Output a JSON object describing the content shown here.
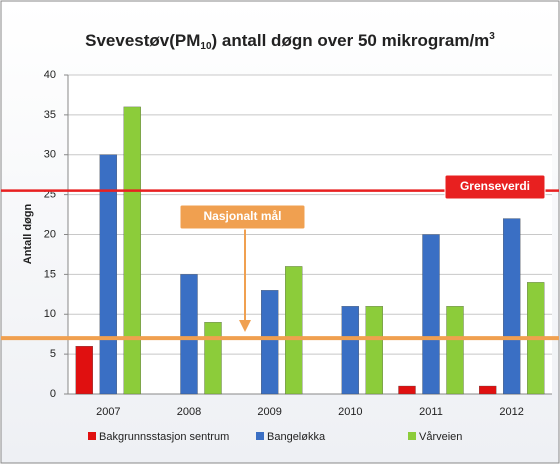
{
  "chart_data": {
    "type": "bar",
    "title": [
      "Svevestøv(PM",
      "10",
      ") antall døgn over 50 mikrogram/m",
      "3"
    ],
    "ylabel": "Antall døgn",
    "categories": [
      "2007",
      "2008",
      "2009",
      "2010",
      "2011",
      "2012"
    ],
    "series": [
      {
        "name": "Bakgrunnsstasjon sentrum",
        "color": "#e01010",
        "values": [
          6,
          0,
          0,
          0,
          1,
          1
        ]
      },
      {
        "name": "Bangeløkka",
        "color": "#3a6fc4",
        "values": [
          30,
          15,
          13,
          11,
          20,
          22
        ]
      },
      {
        "name": "Vårveien",
        "color": "#8ccc3a",
        "values": [
          36,
          9,
          16,
          11,
          11,
          14
        ]
      }
    ],
    "ylim": [
      0,
      40
    ],
    "yticks": [
      0,
      5,
      10,
      15,
      20,
      25,
      30,
      35,
      40
    ],
    "grid": true,
    "reference_lines": [
      {
        "label": "Grenseverdi",
        "value": 25.5,
        "color": "#e82020"
      },
      {
        "label": "Nasjonalt mål",
        "value": 7,
        "color": "#f0a050"
      }
    ]
  }
}
